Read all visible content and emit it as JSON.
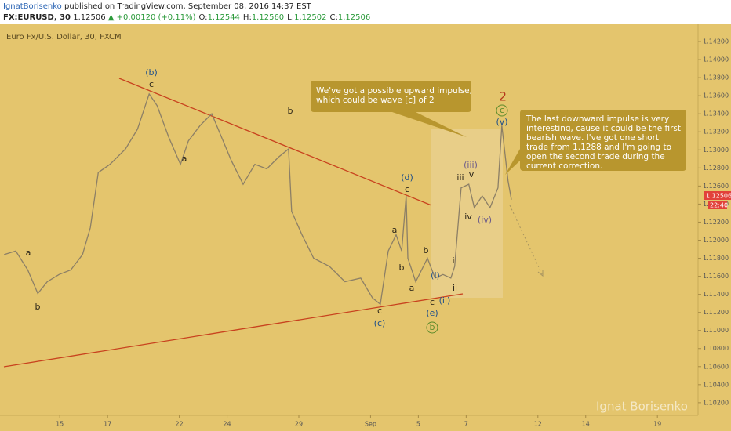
{
  "header": {
    "author": "IgnatBorisenko",
    "published": "published on TradingView.com, September 08, 2016 14:37 EST",
    "symbol": "FX:EURUSD, 30",
    "last": "1.12506",
    "change": "▲ +0.00120 (+0.11%)",
    "ohlc": [
      {
        "label": "O:",
        "value": "1.12544"
      },
      {
        "label": "H:",
        "value": "1.12560"
      },
      {
        "label": "L:",
        "value": "1.12502"
      },
      {
        "label": "C:",
        "value": "1.12506"
      }
    ]
  },
  "chart_data": {
    "type": "line",
    "x": [
      -2.33,
      -1.84,
      -1.34,
      -0.92,
      -0.52,
      -0.03,
      0.46,
      0.95,
      1.28,
      1.61,
      2.1,
      2.75,
      3.25,
      3.74,
      4.07,
      4.56,
      5.05,
      5.38,
      5.87,
      6.36,
      6.69,
      7.18,
      7.67,
      8.16,
      8.66,
      9.15,
      9.57,
      9.7,
      10.13,
      10.62,
      11.28,
      11.93,
      12.59,
      13.08,
      13.41,
      13.74,
      14.07,
      14.3,
      14.49,
      14.56,
      14.89,
      15.38,
      15.7,
      16.03,
      16.36,
      16.52,
      16.79,
      17.11,
      17.34,
      17.67,
      18.0,
      18.33,
      18.49,
      18.75,
      18.89
    ],
    "series": [
      {
        "name": "Euro Fx/U.S. Dollar, 30, FXCM",
        "color": "#8c7f66",
        "values": [
          1.1184,
          1.1188,
          1.1167,
          1.1141,
          1.1154,
          1.1162,
          1.1167,
          1.1184,
          1.1214,
          1.1275,
          1.1284,
          1.1301,
          1.1323,
          1.1362,
          1.1349,
          1.1314,
          1.1284,
          1.131,
          1.1327,
          1.134,
          1.1319,
          1.1288,
          1.1262,
          1.1284,
          1.1279,
          1.1292,
          1.1301,
          1.1232,
          1.1206,
          1.118,
          1.1171,
          1.1154,
          1.1158,
          1.1136,
          1.1129,
          1.1188,
          1.1206,
          1.1188,
          1.1249,
          1.118,
          1.1154,
          1.118,
          1.1158,
          1.1162,
          1.1158,
          1.1171,
          1.1258,
          1.1262,
          1.1236,
          1.1249,
          1.1236,
          1.1258,
          1.1327,
          1.1266,
          1.1245
        ]
      }
    ],
    "xlim": [
      -2.5,
      26.7
    ],
    "xticks": [
      {
        "value": 0,
        "label": "15"
      },
      {
        "value": 2,
        "label": "17"
      },
      {
        "value": 5,
        "label": "22"
      },
      {
        "value": 7,
        "label": "24"
      },
      {
        "value": 10,
        "label": "29"
      },
      {
        "value": 13,
        "label": "Sep"
      },
      {
        "value": 15,
        "label": "5"
      },
      {
        "value": 17,
        "label": "7"
      },
      {
        "value": 20,
        "label": "12"
      },
      {
        "value": 22,
        "label": "14"
      },
      {
        "value": 25,
        "label": "19"
      }
    ],
    "ylim": [
      1.1006,
      1.144
    ],
    "yticks": [
      {
        "value": 1.102,
        "label": "1.10200"
      },
      {
        "value": 1.104,
        "label": "1.10400"
      },
      {
        "value": 1.106,
        "label": "1.10600"
      },
      {
        "value": 1.108,
        "label": "1.10800"
      },
      {
        "value": 1.11,
        "label": "1.11000"
      },
      {
        "value": 1.112,
        "label": "1.11200"
      },
      {
        "value": 1.114,
        "label": "1.11400"
      },
      {
        "value": 1.116,
        "label": "1.11600"
      },
      {
        "value": 1.118,
        "label": "1.11800"
      },
      {
        "value": 1.12,
        "label": "1.12000"
      },
      {
        "value": 1.122,
        "label": "1.12200"
      },
      {
        "value": 1.124,
        "label": "1.12400"
      },
      {
        "value": 1.126,
        "label": "1.12600"
      },
      {
        "value": 1.128,
        "label": "1.12800"
      },
      {
        "value": 1.13,
        "label": "1.13000"
      },
      {
        "value": 1.132,
        "label": "1.13200"
      },
      {
        "value": 1.134,
        "label": "1.13400"
      },
      {
        "value": 1.136,
        "label": "1.13600"
      },
      {
        "value": 1.138,
        "label": "1.13800"
      },
      {
        "value": 1.14,
        "label": "1.14000"
      },
      {
        "value": 1.142,
        "label": "1.14200"
      }
    ],
    "price_tag": "1.12506",
    "time_tag": "22:40",
    "wave_labels": [
      "(b)",
      "c",
      "a",
      "b",
      "a",
      "b",
      "(d)",
      "c",
      "a",
      "b",
      "a",
      "b",
      "c",
      "(c)",
      "(i)",
      "c",
      "(ii)",
      "ii",
      "i",
      "(e)",
      "b",
      "iii",
      "(iii)",
      "v",
      "iv",
      "(iv)",
      "(v)",
      "c",
      "2"
    ],
    "callouts": [
      [
        "We've got a possible upward impulse,",
        "which could be wave [c] of 2"
      ],
      [
        "The last downward impulse is very",
        "interesting, cause it could be the first",
        "bearish wave. I've got one short",
        "trade from 1.1288 and I'm going to",
        "open the second trade during the",
        "current correction."
      ]
    ],
    "watermark": "Ignat Borisenko"
  }
}
